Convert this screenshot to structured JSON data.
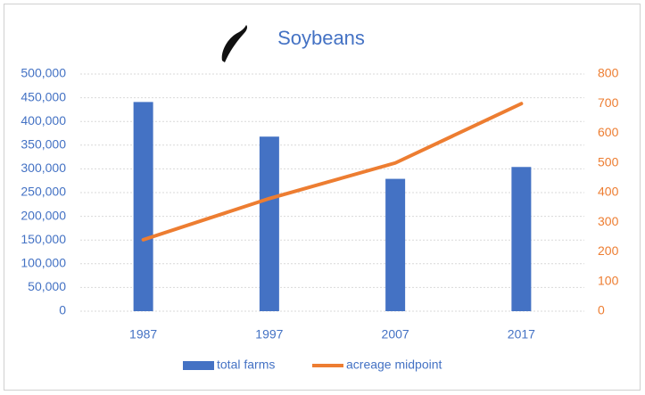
{
  "chart_data": {
    "type": "bar+line",
    "title": "Soybeans",
    "categories": [
      "1987",
      "1997",
      "2007",
      "2017"
    ],
    "series": [
      {
        "name": "total farms",
        "type": "bar",
        "color": "#4472c4",
        "axis": "y",
        "values": [
          441000,
          368000,
          279000,
          304000
        ]
      },
      {
        "name": "acreage midpoint",
        "type": "line",
        "color": "#ed7d31",
        "axis": "y2",
        "values": [
          241,
          380,
          500,
          700
        ]
      }
    ],
    "ylim": [
      0,
      500000
    ],
    "yticks": [
      0,
      {
        "value": 50000,
        "label": "50,000"
      },
      {
        "value": 100000,
        "label": "100,000"
      },
      {
        "value": 150000,
        "label": "150,000"
      },
      {
        "value": 200000,
        "label": "200,000"
      },
      {
        "value": 250000,
        "label": "250,000"
      },
      {
        "value": 300000,
        "label": "300,000"
      },
      {
        "value": 350000,
        "label": "350,000"
      },
      {
        "value": 400000,
        "label": "400,000"
      },
      {
        "value": 450000,
        "label": "450,000"
      },
      {
        "value": 500000,
        "label": "500,000"
      }
    ],
    "y2lim": [
      0,
      800
    ],
    "y2ticks": [
      0,
      100,
      200,
      300,
      400,
      500,
      600,
      700,
      800
    ],
    "grid": true,
    "legend": "bottom"
  }
}
